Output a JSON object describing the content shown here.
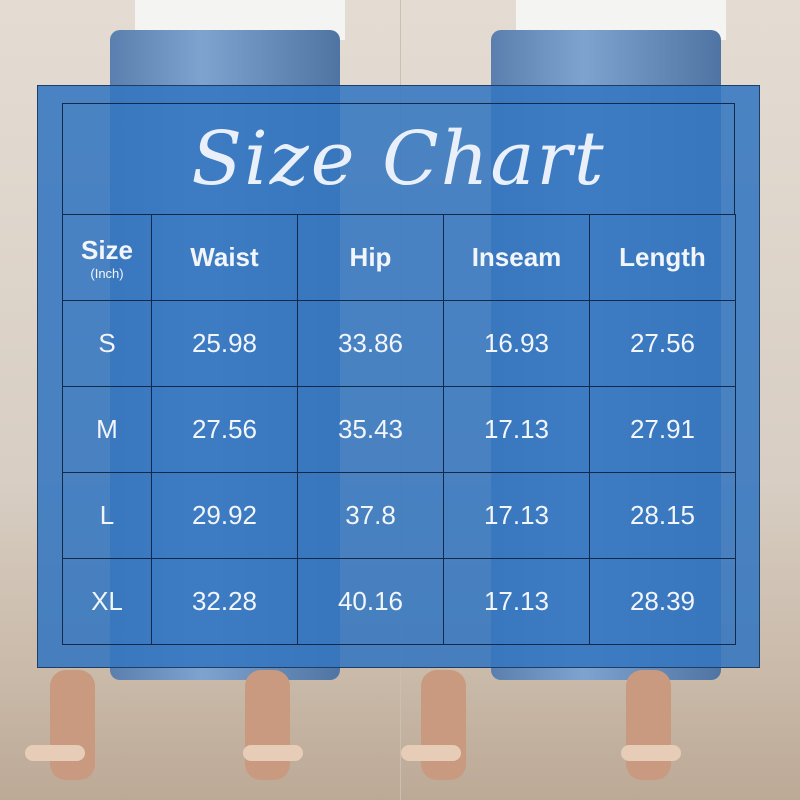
{
  "title": "Size Chart",
  "headers": {
    "size": "Size",
    "unit": "(Inch)",
    "waist": "Waist",
    "hip": "Hip",
    "inseam": "Inseam",
    "length": "Length"
  },
  "rows": [
    {
      "size": "S",
      "waist": "25.98",
      "hip": "33.86",
      "inseam": "16.93",
      "length": "27.56"
    },
    {
      "size": "M",
      "waist": "27.56",
      "hip": "35.43",
      "inseam": "17.13",
      "length": "27.91"
    },
    {
      "size": "L",
      "waist": "29.92",
      "hip": "37.8",
      "inseam": "17.13",
      "length": "28.15"
    },
    {
      "size": "XL",
      "waist": "32.28",
      "hip": "40.16",
      "inseam": "17.13",
      "length": "28.39"
    }
  ],
  "colors": {
    "panel": "#3476c0",
    "lines": "#13294a",
    "text": "#f2f5fa"
  }
}
